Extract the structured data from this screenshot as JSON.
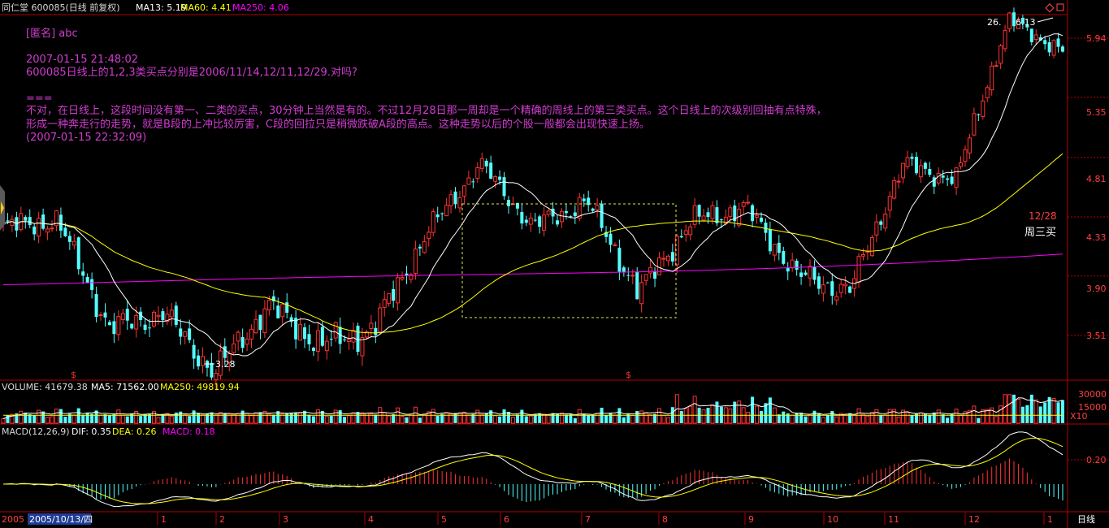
{
  "header": {
    "stock_name": "同仁堂 600085(日线 前复权)",
    "ma13": "MA13: 5.19",
    "ma60": "MA60: 4.41",
    "ma250": "MA250: 4.06"
  },
  "note": {
    "author": "[匿名] abc",
    "question_time": "2007-01-15 21:48:02",
    "question": "600085日线上的1,2,3类买点分别是2006/11/14,12/11,12/29.对吗?",
    "separator": "===",
    "answer_line1": "不对，在日线上，这段时间没有第一、二类的买点，30分钟上当然是有的。不过12月28日那一周却是一个精确的周线上的第三类买点。这个日线上的次级别回抽有点特殊，",
    "answer_line2": "形成一种奔走行的走势，就是B段的上冲比较厉害，C段的回拉只是稍微跌破A段的高点。这种走势以后的个股一般都会出现快速上扬。",
    "answer_time": "(2007-01-15 22:32:09)"
  },
  "price_axis": {
    "ticks": [
      "5.94",
      "5.35",
      "4.81",
      "4.33",
      "3.90",
      "3.51"
    ]
  },
  "annotations": {
    "low_label": "3.28",
    "high_label": "6.13",
    "high_prefix": "26.",
    "date_label": "12/28",
    "weekly_label": "周三买",
    "marker1": "$",
    "marker2": "$"
  },
  "volume": {
    "label": "VOLUME: 41679.38",
    "ma5": "MA5: 71562.00",
    "ma250": "MA250: 49819.94",
    "ticks": [
      "30000",
      "15000"
    ],
    "unit": "X10"
  },
  "macd": {
    "label": "MACD(12,26,9)",
    "dif": "DIF: 0.35",
    "dea": "DEA: 0.26",
    "macd": "MACD: 0.18",
    "tick": "0.20"
  },
  "time_axis": {
    "start_year": "2005",
    "cursor_date": "2005/10/13/四",
    "months": [
      "1",
      "2",
      "3",
      "4",
      "5",
      "6",
      "7",
      "8",
      "9",
      "10",
      "11",
      "12",
      "1"
    ],
    "period_label": "日线"
  },
  "colors": {
    "up": "#ff3232",
    "down": "#54ffff",
    "ma13": "#ffffff",
    "ma60": "#ffff00",
    "ma250": "#ff00ff",
    "note": "#d23cd2",
    "frame": "#b40000"
  },
  "chart_data": {
    "type": "candlestick",
    "title": "同仁堂 600085(日线 前复权)",
    "xlabel": "",
    "ylabel": "",
    "y_ticks": [
      5.94,
      5.35,
      4.81,
      4.33,
      3.9,
      3.51
    ],
    "price_waypoints": [
      {
        "x": "2005-10",
        "close": 4.25
      },
      {
        "x": "2005-11",
        "close": 4.3
      },
      {
        "x": "2005-12-end",
        "close": 3.55
      },
      {
        "x": "2006-01",
        "close": 3.65
      },
      {
        "x": "2006-02-low",
        "close": 3.28
      },
      {
        "x": "2006-02",
        "close": 3.7
      },
      {
        "x": "2006-03",
        "close": 3.45
      },
      {
        "x": "2006-04-mid",
        "close": 3.55
      },
      {
        "x": "2006-04-end",
        "close": 4.2
      },
      {
        "x": "2006-05-high",
        "close": 4.75
      },
      {
        "x": "2006-06",
        "close": 4.25
      },
      {
        "x": "2006-07",
        "close": 4.45
      },
      {
        "x": "2006-08-low",
        "close": 3.78
      },
      {
        "x": "2006-09",
        "close": 4.3
      },
      {
        "x": "2006-10",
        "close": 4.4
      },
      {
        "x": "2006-11",
        "close": 3.9
      },
      {
        "x": "2006-11-14",
        "close": 3.8
      },
      {
        "x": "2006-12-mid",
        "close": 4.75
      },
      {
        "x": "2006-12-28",
        "close": 4.62
      },
      {
        "x": "2007-01-high",
        "close": 6.13
      },
      {
        "x": "2007-01-15",
        "close": 5.8
      }
    ],
    "series": [
      {
        "name": "MA13",
        "last": 5.19
      },
      {
        "name": "MA60",
        "last": 4.41
      },
      {
        "name": "MA250",
        "last": 4.06
      }
    ],
    "volume": {
      "last": 41679.38,
      "ma5": 71562.0,
      "ma250": 49819.94
    },
    "macd": {
      "dif": 0.35,
      "dea": 0.26,
      "macd": 0.18
    }
  }
}
